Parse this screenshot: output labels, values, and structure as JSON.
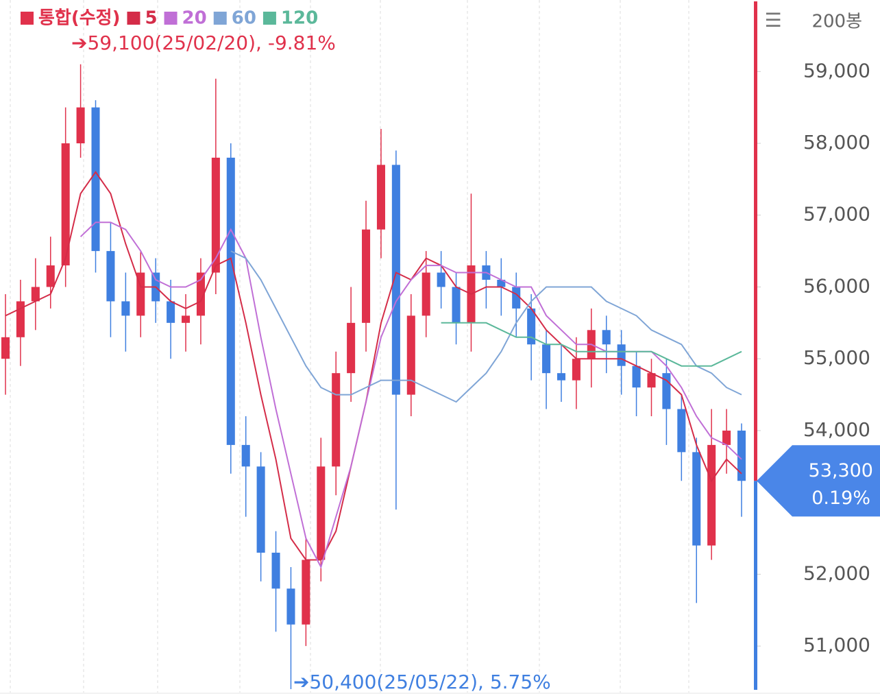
{
  "chart_data": {
    "type": "candlestick",
    "legend": [
      {
        "name": "통합(수정)",
        "color": "#e0314b"
      }
    ],
    "bars_label": "200봉",
    "ohlc": {
      "open": [
        55000,
        55300,
        55800,
        56000,
        56300,
        58000,
        58500,
        56500,
        55800,
        55600,
        56200,
        55800,
        55500,
        55600,
        56200,
        57800,
        53800,
        53500,
        52300,
        51800,
        51300,
        52200,
        53500,
        54800,
        55500,
        56800,
        57700,
        54500,
        55600,
        56200,
        56000,
        55500,
        56300,
        56100,
        56000,
        55700,
        55200,
        54800,
        54700,
        55000,
        55400,
        55200,
        54900,
        54600,
        54800,
        54300,
        53700,
        52400,
        53800,
        54000
      ],
      "high": [
        55900,
        56100,
        56400,
        56700,
        58500,
        59100,
        58600,
        56900,
        56200,
        56500,
        56400,
        56100,
        55900,
        56400,
        58900,
        58000,
        54200,
        53700,
        52600,
        52100,
        52500,
        53900,
        55100,
        56000,
        57200,
        58200,
        57900,
        55900,
        56500,
        56500,
        56200,
        57300,
        56500,
        56400,
        56200,
        55900,
        55400,
        55200,
        55300,
        55700,
        55600,
        55400,
        55100,
        55000,
        55000,
        54500,
        53900,
        54300,
        54300,
        54100
      ],
      "low": [
        54500,
        54900,
        55400,
        55700,
        56000,
        57800,
        56200,
        55300,
        55100,
        55300,
        55500,
        55000,
        55100,
        55200,
        55900,
        53400,
        52800,
        51900,
        51200,
        50400,
        51000,
        51900,
        53100,
        54400,
        55100,
        56400,
        52900,
        54200,
        55300,
        55700,
        55200,
        55100,
        55700,
        55600,
        55300,
        54700,
        54300,
        54400,
        54300,
        54600,
        54800,
        54500,
        54200,
        54200,
        53800,
        53300,
        51600,
        52200,
        53400,
        52800
      ],
      "close": [
        55300,
        55800,
        56000,
        56300,
        58000,
        58500,
        56500,
        55800,
        55600,
        56200,
        55800,
        55500,
        55600,
        56200,
        57800,
        53800,
        53500,
        52300,
        51800,
        51300,
        52200,
        53500,
        54800,
        55500,
        56800,
        57700,
        54500,
        55600,
        56200,
        56000,
        55500,
        56300,
        56100,
        56000,
        55700,
        55200,
        54800,
        54700,
        55000,
        55400,
        55200,
        54900,
        54600,
        54800,
        54300,
        53700,
        52400,
        53800,
        54000,
        53300
      ]
    },
    "up_color": "#e0314b",
    "down_color": "#3f7fe0",
    "series": [
      {
        "name": "5",
        "color": "#d42c48",
        "values": [
          55600,
          55700,
          55800,
          55900,
          56400,
          57300,
          57600,
          57300,
          56600,
          56000,
          56000,
          55800,
          55700,
          55800,
          56300,
          56400,
          55500,
          54500,
          53600,
          52500,
          52200,
          52200,
          52600,
          53500,
          54400,
          55500,
          56200,
          56100,
          56400,
          56300,
          56000,
          55900,
          56000,
          56000,
          55900,
          55700,
          55400,
          55200,
          55000,
          55000,
          55000,
          55000,
          54900,
          54800,
          54700,
          54500,
          53800,
          53300,
          53600,
          53400
        ]
      },
      {
        "name": "20",
        "color": "#c06fd6",
        "values": [
          null,
          null,
          null,
          null,
          null,
          56700,
          56900,
          56900,
          56800,
          56500,
          56100,
          56000,
          56000,
          56100,
          56400,
          56800,
          56400,
          55300,
          54300,
          53400,
          52500,
          52100,
          52800,
          53500,
          54400,
          55300,
          55800,
          56100,
          56300,
          56300,
          56200,
          56200,
          56200,
          56100,
          56000,
          56000,
          55600,
          55400,
          55200,
          55200,
          55100,
          55100,
          55100,
          55100,
          54900,
          54600,
          54200,
          53900,
          53800,
          53600
        ]
      },
      {
        "name": "60",
        "color": "#7fa5d6",
        "values": [
          null,
          null,
          null,
          null,
          null,
          null,
          null,
          null,
          null,
          null,
          null,
          null,
          null,
          null,
          null,
          56500,
          56400,
          56100,
          55700,
          55300,
          54900,
          54600,
          54500,
          54500,
          54600,
          54700,
          54700,
          54700,
          54600,
          54500,
          54400,
          54600,
          54800,
          55100,
          55500,
          55800,
          56000,
          56000,
          56000,
          56000,
          55800,
          55700,
          55600,
          55400,
          55300,
          55200,
          54900,
          54800,
          54600,
          54500
        ]
      },
      {
        "name": "120",
        "color": "#5bb89a",
        "values": [
          null,
          null,
          null,
          null,
          null,
          null,
          null,
          null,
          null,
          null,
          null,
          null,
          null,
          null,
          null,
          null,
          null,
          null,
          null,
          null,
          null,
          null,
          null,
          null,
          null,
          null,
          null,
          null,
          null,
          55500,
          55500,
          55500,
          55500,
          55400,
          55300,
          55300,
          55200,
          55200,
          55100,
          55100,
          55100,
          55100,
          55100,
          55100,
          55000,
          54900,
          54900,
          54900,
          55000,
          55100
        ]
      }
    ],
    "annotations": [
      {
        "text": "➔59,100(25/02/20), -9.81%",
        "color": "#e0314b"
      },
      {
        "text": "➔50,400(25/05/22), 5.75%",
        "color": "#3f7fe0"
      }
    ],
    "last_price": {
      "value": 53300,
      "label": "53,300"
    },
    "last_change": "0.19%",
    "ylim": [
      50400,
      59900
    ],
    "yticks": [
      {
        "value": 51000,
        "label": "51,000"
      },
      {
        "value": 52000,
        "label": "52,000"
      },
      {
        "value": 54000,
        "label": "54,000"
      },
      {
        "value": 55000,
        "label": "55,000"
      },
      {
        "value": 56000,
        "label": "56,000"
      },
      {
        "value": 57000,
        "label": "57,000"
      },
      {
        "value": 58000,
        "label": "58,000"
      },
      {
        "value": 59000,
        "label": "59,000"
      }
    ]
  }
}
